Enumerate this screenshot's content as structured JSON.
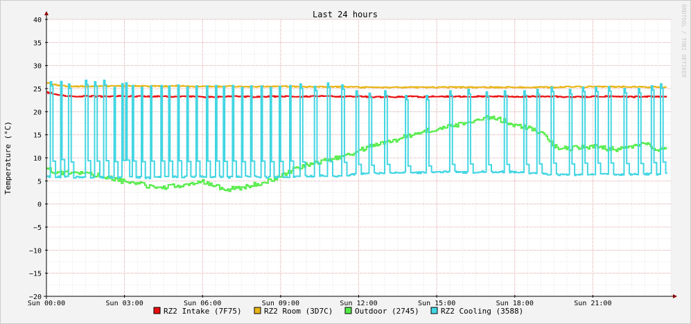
{
  "chart_data": {
    "type": "line",
    "title": "Last 24 hours",
    "ylabel": "Temperature (°C)",
    "watermark": "RRDTOOL / TOBI OETIKER",
    "ylim": [
      -20,
      40
    ],
    "xlim": [
      0,
      24
    ],
    "y_ticks": [
      40,
      35,
      30,
      25,
      20,
      15,
      10,
      5,
      0,
      -5,
      -10,
      -15,
      -20
    ],
    "x_ticks": [
      {
        "value": 0,
        "label": "Sun 00:00"
      },
      {
        "value": 3,
        "label": "Sun 03:00"
      },
      {
        "value": 6,
        "label": "Sun 06:00"
      },
      {
        "value": 9,
        "label": "Sun 09:00"
      },
      {
        "value": 12,
        "label": "Sun 12:00"
      },
      {
        "value": 15,
        "label": "Sun 15:00"
      },
      {
        "value": 18,
        "label": "Sun 18:00"
      },
      {
        "value": 21,
        "label": "Sun 21:00"
      }
    ],
    "grid": true,
    "legend_position": "bottom",
    "colors": {
      "background": "#f3f3f3",
      "canvas": "#ffffff",
      "minor_grid": "#e0e0e0",
      "major_grid": "#e8b0b0",
      "axis": "#8b0000"
    },
    "series": [
      {
        "name": "RZ2 Intake (7F75)",
        "color": "#ea0e0e",
        "points": [
          [
            0,
            24.2
          ],
          [
            0.5,
            23.5
          ],
          [
            1,
            23.3
          ],
          [
            1.5,
            23.4
          ],
          [
            2,
            23.3
          ],
          [
            2.5,
            23.3
          ],
          [
            3,
            23.4
          ],
          [
            3.5,
            23.3
          ],
          [
            4,
            23.3
          ],
          [
            4.5,
            23.3
          ],
          [
            5,
            23.2
          ],
          [
            5.5,
            23.3
          ],
          [
            6,
            23.2
          ],
          [
            6.5,
            23.2
          ],
          [
            7,
            23.3
          ],
          [
            7.5,
            23.3
          ],
          [
            8,
            23.2
          ],
          [
            8.5,
            23.3
          ],
          [
            9,
            23.3
          ],
          [
            9.5,
            23.3
          ],
          [
            10,
            23.3
          ],
          [
            10.5,
            23.4
          ],
          [
            11,
            23.3
          ],
          [
            11.5,
            23.3
          ],
          [
            12,
            23.3
          ],
          [
            12.5,
            23.2
          ],
          [
            13,
            23.2
          ],
          [
            13.5,
            23.2
          ],
          [
            14,
            23.3
          ],
          [
            14.5,
            23.2
          ],
          [
            15,
            23.3
          ],
          [
            15.5,
            23.3
          ],
          [
            16,
            23.3
          ],
          [
            16.5,
            23.3
          ],
          [
            17,
            23.3
          ],
          [
            17.5,
            23.3
          ],
          [
            18,
            23.2
          ],
          [
            18.5,
            23.3
          ],
          [
            19,
            23.3
          ],
          [
            19.5,
            23.3
          ],
          [
            20,
            23.2
          ],
          [
            20.5,
            23.2
          ],
          [
            21,
            23.3
          ],
          [
            21.5,
            23.3
          ],
          [
            22,
            23.3
          ],
          [
            22.5,
            23.2
          ],
          [
            23,
            23.3
          ],
          [
            23.5,
            23.2
          ],
          [
            23.85,
            23.4
          ]
        ]
      },
      {
        "name": "RZ2 Room (3D7C)",
        "color": "#e8b517",
        "points": [
          [
            0,
            26.3
          ],
          [
            0.5,
            25.6
          ],
          [
            1,
            25.5
          ],
          [
            1.5,
            25.5
          ],
          [
            2,
            25.6
          ],
          [
            2.5,
            25.5
          ],
          [
            3,
            25.6
          ],
          [
            3.5,
            25.6
          ],
          [
            4,
            25.5
          ],
          [
            4.5,
            25.5
          ],
          [
            5,
            25.6
          ],
          [
            5.5,
            25.5
          ],
          [
            6,
            25.5
          ],
          [
            6.5,
            25.4
          ],
          [
            7,
            25.5
          ],
          [
            7.5,
            25.5
          ],
          [
            8,
            25.4
          ],
          [
            8.5,
            25.5
          ],
          [
            9,
            25.5
          ],
          [
            9.5,
            25.4
          ],
          [
            10,
            25.4
          ],
          [
            10.5,
            25.4
          ],
          [
            11,
            25.4
          ],
          [
            11.5,
            25.4
          ],
          [
            12,
            25.3
          ],
          [
            12.5,
            25.3
          ],
          [
            13,
            25.3
          ],
          [
            13.5,
            25.3
          ],
          [
            14,
            25.3
          ],
          [
            14.5,
            25.3
          ],
          [
            15,
            25.3
          ],
          [
            15.5,
            25.3
          ],
          [
            16,
            25.3
          ],
          [
            16.5,
            25.3
          ],
          [
            17,
            25.3
          ],
          [
            17.5,
            25.3
          ],
          [
            18,
            25.3
          ],
          [
            18.5,
            25.3
          ],
          [
            19,
            25.3
          ],
          [
            19.5,
            25.3
          ],
          [
            20,
            25.4
          ],
          [
            20.5,
            25.4
          ],
          [
            21,
            25.4
          ],
          [
            21.5,
            25.4
          ],
          [
            22,
            25.4
          ],
          [
            22.5,
            25.4
          ],
          [
            23,
            25.3
          ],
          [
            23.5,
            25.4
          ],
          [
            23.85,
            25.3
          ]
        ]
      },
      {
        "name": "Outdoor (2745)",
        "color": "#54ec48",
        "points": [
          [
            0,
            7.5
          ],
          [
            0.5,
            6.8
          ],
          [
            1,
            6.5
          ],
          [
            1.5,
            6.8
          ],
          [
            2,
            6.2
          ],
          [
            2.5,
            5.5
          ],
          [
            3,
            4.8
          ],
          [
            3.5,
            4.5
          ],
          [
            4,
            3.8
          ],
          [
            4.5,
            3.5
          ],
          [
            5,
            4.0
          ],
          [
            5.5,
            4.2
          ],
          [
            6,
            4.8
          ],
          [
            6.5,
            3.8
          ],
          [
            7,
            3.2
          ],
          [
            7.5,
            3.6
          ],
          [
            8,
            4.2
          ],
          [
            8.5,
            5.0
          ],
          [
            9,
            6.0
          ],
          [
            9.5,
            7.5
          ],
          [
            10,
            8.5
          ],
          [
            10.5,
            9.2
          ],
          [
            11,
            9.8
          ],
          [
            11.5,
            10.5
          ],
          [
            12,
            11.5
          ],
          [
            12.5,
            12.8
          ],
          [
            13,
            13.5
          ],
          [
            13.5,
            14.0
          ],
          [
            14,
            15.0
          ],
          [
            14.5,
            15.8
          ],
          [
            15,
            16.2
          ],
          [
            15.5,
            16.8
          ],
          [
            16,
            17.5
          ],
          [
            16.5,
            18.0
          ],
          [
            17,
            18.8
          ],
          [
            17.5,
            18.2
          ],
          [
            18,
            17.0
          ],
          [
            18.5,
            16.5
          ],
          [
            19,
            15.5
          ],
          [
            19.5,
            12.5
          ],
          [
            20,
            12.0
          ],
          [
            20.5,
            12.2
          ],
          [
            21,
            12.5
          ],
          [
            21.5,
            12.0
          ],
          [
            22,
            11.8
          ],
          [
            22.5,
            12.5
          ],
          [
            23,
            13.5
          ],
          [
            23.5,
            11.2
          ],
          [
            23.85,
            12.3
          ]
        ]
      },
      {
        "name": "RZ2 Cooling (3588)",
        "color": "#42d6e2",
        "points": [
          [
            0,
            6.0
          ],
          [
            0.5,
            5.9
          ],
          [
            1,
            5.8
          ],
          [
            1.5,
            5.8
          ],
          [
            2,
            5.8
          ],
          [
            2.5,
            5.7
          ],
          [
            3,
            5.7
          ],
          [
            3.5,
            5.8
          ],
          [
            4,
            5.7
          ],
          [
            4.5,
            5.8
          ],
          [
            5,
            5.9
          ],
          [
            5.5,
            5.9
          ],
          [
            6,
            6.0
          ],
          [
            6.5,
            5.9
          ],
          [
            7,
            5.8
          ],
          [
            7.5,
            5.9
          ],
          [
            8,
            5.9
          ],
          [
            8.5,
            5.8
          ],
          [
            9,
            5.8
          ],
          [
            9.5,
            6.0
          ],
          [
            10,
            6.0
          ],
          [
            10.5,
            6.1
          ],
          [
            11,
            6.0
          ],
          [
            11.5,
            6.2
          ],
          [
            12,
            6.5
          ],
          [
            12.5,
            6.6
          ],
          [
            13,
            6.7
          ],
          [
            13.5,
            6.8
          ],
          [
            14,
            6.8
          ],
          [
            14.5,
            6.8
          ],
          [
            15,
            6.9
          ],
          [
            15.5,
            7.0
          ],
          [
            16,
            6.8
          ],
          [
            16.5,
            6.9
          ],
          [
            17,
            7.0
          ],
          [
            17.5,
            7.0
          ],
          [
            18,
            6.9
          ],
          [
            18.5,
            6.8
          ],
          [
            19,
            6.5
          ],
          [
            19.5,
            6.4
          ],
          [
            20,
            6.3
          ],
          [
            20.5,
            6.4
          ],
          [
            21,
            6.5
          ],
          [
            21.5,
            6.5
          ],
          [
            22,
            6.3
          ],
          [
            22.5,
            6.4
          ],
          [
            23,
            6.5
          ],
          [
            23.5,
            6.4
          ],
          [
            23.85,
            6.6
          ]
        ],
        "spikes": [
          {
            "x": 0.15,
            "peak": 26.5
          },
          {
            "x": 0.5,
            "peak": 27.5
          },
          {
            "x": 0.85,
            "peak": 26.0
          },
          {
            "x": 1.5,
            "peak": 26.8
          },
          {
            "x": 1.85,
            "peak": 26.5
          },
          {
            "x": 2.2,
            "peak": 26.8
          },
          {
            "x": 2.55,
            "peak": 26.2
          },
          {
            "x": 2.85,
            "peak": 27.0
          },
          {
            "x": 3.0,
            "peak": 27.2
          },
          {
            "x": 3.25,
            "peak": 26.6
          },
          {
            "x": 3.6,
            "peak": 26.2
          },
          {
            "x": 3.95,
            "peak": 26.5
          },
          {
            "x": 4.35,
            "peak": 26.6
          },
          {
            "x": 4.65,
            "peak": 26.5
          },
          {
            "x": 5.0,
            "peak": 26.7
          },
          {
            "x": 5.35,
            "peak": 26.3
          },
          {
            "x": 5.7,
            "peak": 26.5
          },
          {
            "x": 6.1,
            "peak": 26.5
          },
          {
            "x": 6.45,
            "peak": 26.6
          },
          {
            "x": 6.75,
            "peak": 26.4
          },
          {
            "x": 7.1,
            "peak": 26.6
          },
          {
            "x": 7.45,
            "peak": 26.2
          },
          {
            "x": 7.8,
            "peak": 26.5
          },
          {
            "x": 8.2,
            "peak": 26.5
          },
          {
            "x": 8.55,
            "peak": 26.2
          },
          {
            "x": 8.9,
            "peak": 26.4
          },
          {
            "x": 9.3,
            "peak": 26.6
          },
          {
            "x": 9.75,
            "peak": 26.0
          },
          {
            "x": 10.3,
            "peak": 25.5
          },
          {
            "x": 10.8,
            "peak": 26.2
          },
          {
            "x": 11.35,
            "peak": 25.8
          },
          {
            "x": 11.9,
            "peak": 24.5
          },
          {
            "x": 12.4,
            "peak": 24.0
          },
          {
            "x": 13.0,
            "peak": 24.5
          },
          {
            "x": 13.8,
            "peak": 23.5
          },
          {
            "x": 14.6,
            "peak": 23.5
          },
          {
            "x": 15.5,
            "peak": 24.5
          },
          {
            "x": 16.2,
            "peak": 24.8
          },
          {
            "x": 16.9,
            "peak": 24.3
          },
          {
            "x": 17.6,
            "peak": 24.5
          },
          {
            "x": 18.35,
            "peak": 24.5
          },
          {
            "x": 18.85,
            "peak": 24.8
          },
          {
            "x": 19.4,
            "peak": 25.3
          },
          {
            "x": 20.1,
            "peak": 24.8
          },
          {
            "x": 20.6,
            "peak": 25.3
          },
          {
            "x": 21.1,
            "peak": 25.3
          },
          {
            "x": 21.6,
            "peak": 25.4
          },
          {
            "x": 22.2,
            "peak": 25.0
          },
          {
            "x": 22.75,
            "peak": 25.0
          },
          {
            "x": 23.25,
            "peak": 25.6
          },
          {
            "x": 23.6,
            "peak": 26.0
          }
        ]
      }
    ]
  }
}
